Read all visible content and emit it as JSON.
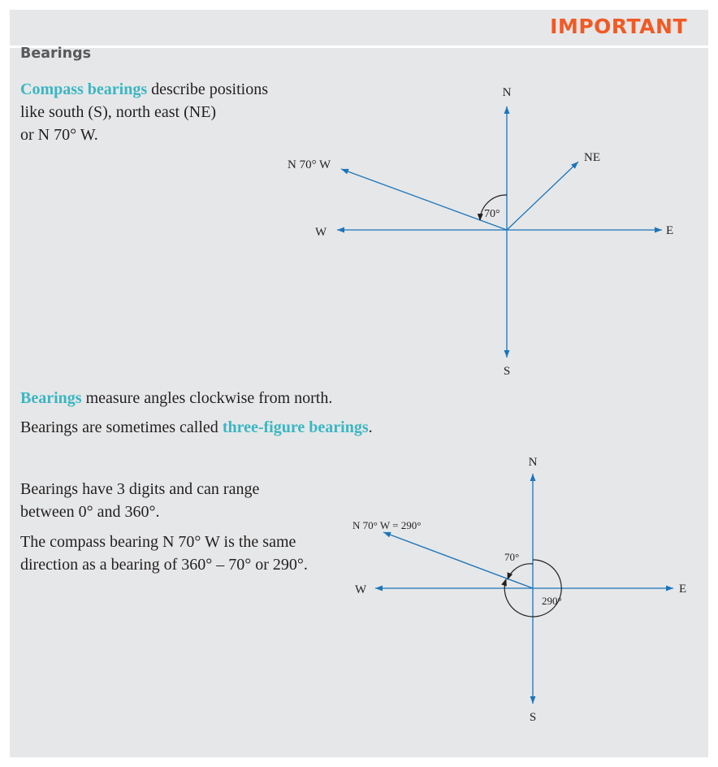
{
  "header": {
    "badge": "IMPORTANT"
  },
  "section": {
    "title": "Bearings"
  },
  "intro": {
    "term": "Compass bearings",
    "line1_rest": " describe positions",
    "line2": "like south (S), north east (NE)",
    "line3": "or N 70° W."
  },
  "definition": {
    "term": "Bearings",
    "rest": " measure angles clockwise from north."
  },
  "alias": {
    "prefix": "Bearings are sometimes called ",
    "term": "three-figure bearings",
    "suffix": "."
  },
  "range_note": {
    "line1": "Bearings have 3 digits and can range",
    "line2": "between 0° and 360°."
  },
  "equivalence": {
    "line1": "The compass bearing N 70° W is the same",
    "line2": "direction as a bearing of 360° – 70° or 290°."
  },
  "diagram1": {
    "north": "N",
    "south": "S",
    "east": "E",
    "west": "W",
    "ne": "NE",
    "nw_label": "N 70° W",
    "angle": "70°"
  },
  "diagram2": {
    "north": "N",
    "south": "S",
    "east": "E",
    "west": "W",
    "nw_label": "N 70° W = 290°",
    "angle_small": "70°",
    "angle_large": "290°"
  },
  "colors": {
    "accent": "#3ab6c3",
    "badge": "#f15a24",
    "arrow": "#1b75bc",
    "panel": "#e6e7e8",
    "title": "#58595b"
  }
}
